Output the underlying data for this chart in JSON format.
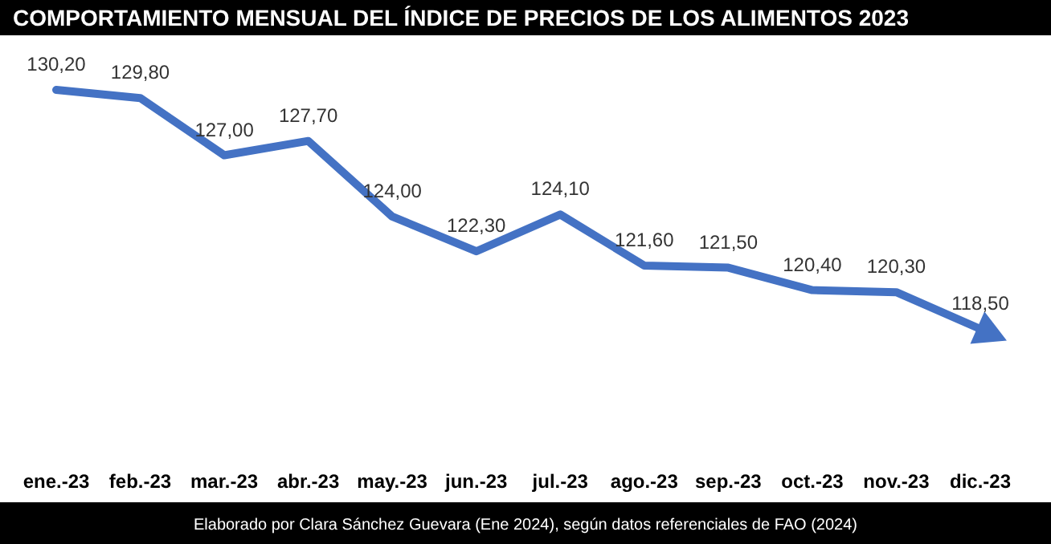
{
  "chart_data": {
    "type": "line",
    "title": "COMPORTAMIENTO MENSUAL DEL ÍNDICE DE PRECIOS DE LOS ALIMENTOS 2023",
    "categories": [
      "ene.-23",
      "feb.-23",
      "mar.-23",
      "abr.-23",
      "may.-23",
      "jun.-23",
      "jul.-23",
      "ago.-23",
      "sep.-23",
      "oct.-23",
      "nov.-23",
      "dic.-23"
    ],
    "series": [
      {
        "color": "#4472c4",
        "values": [
          130.2,
          129.8,
          127.0,
          127.7,
          124.0,
          122.3,
          124.1,
          121.6,
          121.5,
          120.4,
          120.3,
          118.5
        ],
        "value_labels": [
          "130,20",
          "129,80",
          "127,00",
          "127,70",
          "124,00",
          "122,30",
          "124,10",
          "121,60",
          "121,50",
          "120,40",
          "120,30",
          "118,50"
        ]
      }
    ],
    "annotations": [
      "Elaborado por Clara Sánchez Guevara (Ene 2024), según datos referenciales de FAO (2024)"
    ]
  }
}
